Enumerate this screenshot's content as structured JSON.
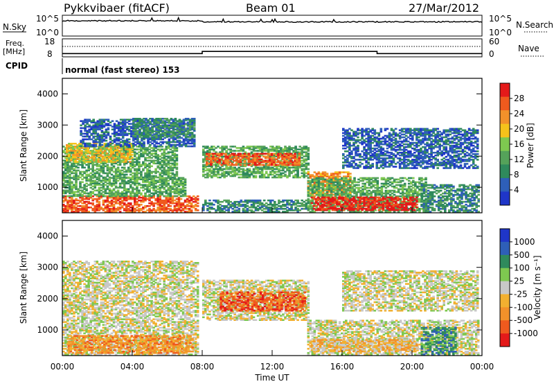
{
  "header": {
    "station": "Pykkvibaer (fitACF)",
    "beam": "Beam 01",
    "date": "27/Mar/2012"
  },
  "strip": {
    "nsky_label": "N.Sky",
    "nsky_ticks": [
      "10^5",
      "10^0"
    ],
    "nsearch_label": "N.Search",
    "nsearch_ticks": [
      "10^5",
      "10^0"
    ],
    "freq_label": "Freq.",
    "freq_unit": "[MHz]",
    "freq_ticks": [
      "18",
      "8"
    ],
    "nave_label": "Nave",
    "nave_ticks": [
      "60",
      "0"
    ],
    "cpid_label": "CPID",
    "cpid_text": "normal (fast stereo) 153"
  },
  "colors": {
    "power": [
      "#1f36c8",
      "#2e5fb8",
      "#2f8a5c",
      "#55a25a",
      "#7ec850",
      "#f5c21b",
      "#f2912a",
      "#ef5a1e",
      "#e41a1a"
    ],
    "velocity": [
      "#1f36c8",
      "#2e5fb8",
      "#2f8a5c",
      "#7ec850",
      "#c8c8c8",
      "#f2b030",
      "#f2912a",
      "#ef5a1e",
      "#e41a1a"
    ]
  },
  "chart_data": [
    {
      "type": "heatmap",
      "name": "power",
      "xlabel": "",
      "ylabel": "Slant Range [km]",
      "xlim": [
        "00:00",
        "24:00"
      ],
      "ylim": [
        180,
        4500
      ],
      "y_ticks": [
        "1000",
        "2000",
        "3000",
        "4000"
      ],
      "colorbar_label": "Power [dB]",
      "colorbar_ticks": [
        "4",
        "8",
        "12",
        "16",
        "20",
        "24",
        "28"
      ],
      "bands": [
        {
          "t0": 0.0,
          "t1": 7.7,
          "r0": 200,
          "r1": 700,
          "level": 7
        },
        {
          "t0": 0.0,
          "t1": 7.0,
          "r0": 700,
          "r1": 1300,
          "level": 3
        },
        {
          "t0": 0.0,
          "t1": 6.5,
          "r0": 1300,
          "r1": 2300,
          "level": 3
        },
        {
          "t0": 0.2,
          "t1": 4.0,
          "r0": 1800,
          "r1": 2400,
          "level": 5
        },
        {
          "t0": 1.0,
          "t1": 7.6,
          "r0": 2300,
          "r1": 3200,
          "level": 1
        },
        {
          "t0": 4.0,
          "t1": 7.6,
          "r0": 2600,
          "r1": 3200,
          "level": 2
        },
        {
          "t0": 8.0,
          "t1": 14.0,
          "r0": 1300,
          "r1": 2300,
          "level": 3
        },
        {
          "t0": 8.2,
          "t1": 13.5,
          "r0": 1700,
          "r1": 2100,
          "level": 7
        },
        {
          "t0": 8.0,
          "t1": 14.0,
          "r0": 200,
          "r1": 600,
          "level": 2
        },
        {
          "t0": 14.0,
          "t1": 16.5,
          "r0": 700,
          "r1": 1500,
          "level": 6
        },
        {
          "t0": 14.0,
          "t1": 20.8,
          "r0": 200,
          "r1": 1300,
          "level": 3
        },
        {
          "t0": 14.2,
          "t1": 20.3,
          "r0": 250,
          "r1": 700,
          "level": 8
        },
        {
          "t0": 20.5,
          "t1": 23.8,
          "r0": 200,
          "r1": 1100,
          "level": 2
        },
        {
          "t0": 16.0,
          "t1": 23.8,
          "r0": 1600,
          "r1": 2900,
          "level": 1
        }
      ]
    },
    {
      "type": "heatmap",
      "name": "velocity",
      "xlabel": "Time UT",
      "ylabel": "Slant Range [km]",
      "xlim": [
        "00:00",
        "24:00"
      ],
      "ylim": [
        180,
        4500
      ],
      "x_ticks": [
        "00:00",
        "04:00",
        "08:00",
        "12:00",
        "16:00",
        "20:00",
        "00:00"
      ],
      "y_ticks": [
        "1000",
        "2000",
        "3000",
        "4000"
      ],
      "colorbar_label": "Velocity [m s⁻¹]",
      "colorbar_ticks": [
        "1000",
        "500",
        "100",
        "25",
        "-25",
        "-100",
        "-500",
        "-1000"
      ],
      "bands": [
        {
          "t0": 0.0,
          "t1": 7.7,
          "r0": 200,
          "r1": 3200,
          "level": 4
        },
        {
          "t0": 0.3,
          "t1": 7.5,
          "r0": 250,
          "r1": 800,
          "level": 6
        },
        {
          "t0": 8.0,
          "t1": 14.0,
          "r0": 1300,
          "r1": 2600,
          "level": 4
        },
        {
          "t0": 9.0,
          "t1": 13.8,
          "r0": 1600,
          "r1": 2200,
          "level": 7
        },
        {
          "t0": 14.0,
          "t1": 23.8,
          "r0": 200,
          "r1": 1300,
          "level": 4
        },
        {
          "t0": 14.2,
          "t1": 20.3,
          "r0": 300,
          "r1": 700,
          "level": 5
        },
        {
          "t0": 20.5,
          "t1": 22.5,
          "r0": 200,
          "r1": 1100,
          "level": 2
        },
        {
          "t0": 16.0,
          "t1": 23.8,
          "r0": 1600,
          "r1": 2900,
          "level": 4
        }
      ]
    }
  ],
  "frequency_series": {
    "times": [
      0,
      0.2,
      8.0,
      8.0,
      18.0,
      18.0,
      24.0
    ],
    "values": [
      9.8,
      9.8,
      9.8,
      11.0,
      11.0,
      9.8,
      9.8
    ]
  }
}
